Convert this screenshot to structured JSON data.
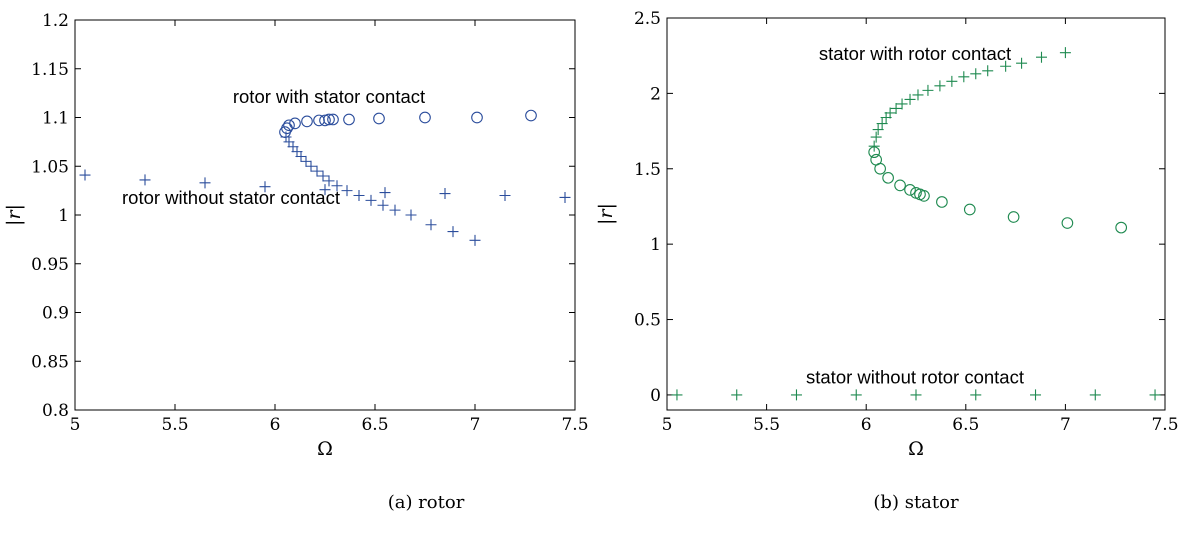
{
  "captions": {
    "a": "(a) rotor",
    "b": "(b) stator"
  },
  "chart_data": [
    {
      "type": "scatter",
      "xlabel": "Ω",
      "ylabel": "|r|",
      "xlim": [
        5,
        7.5
      ],
      "ylim": [
        0.8,
        1.2
      ],
      "xticks": [
        5,
        5.5,
        6,
        6.5,
        7,
        7.5
      ],
      "xtick_labels": [
        "5",
        "5.5",
        "6",
        "6.5",
        "7",
        "7.5"
      ],
      "yticks": [
        0.8,
        0.85,
        0.9,
        0.95,
        1,
        1.05,
        1.1,
        1.15,
        1.2
      ],
      "ytick_labels": [
        "0.8",
        "0.85",
        "0.9",
        "0.95",
        "1",
        "1.05",
        "1.1",
        "1.15",
        "1.2"
      ],
      "color": "#2b4d9c",
      "annotations": [
        {
          "text": "rotor with stator contact",
          "x": 6.27,
          "y": 1.115
        },
        {
          "text": "rotor without stator contact",
          "x": 5.78,
          "y": 1.0115
        }
      ],
      "series": [
        {
          "marker": "plus",
          "x": [
            5.05,
            5.35,
            5.65,
            5.95,
            6.25,
            6.55,
            6.85,
            7.15,
            7.45,
            6.055,
            6.07,
            6.09,
            6.11,
            6.13,
            6.155,
            6.18,
            6.21,
            6.24,
            6.27,
            6.31,
            6.36,
            6.42,
            6.48,
            6.54,
            6.6,
            6.68,
            6.78,
            6.89,
            7.0
          ],
          "y": [
            1.041,
            1.036,
            1.033,
            1.029,
            1.026,
            1.023,
            1.022,
            1.02,
            1.018,
            1.08,
            1.075,
            1.07,
            1.065,
            1.06,
            1.055,
            1.05,
            1.045,
            1.04,
            1.035,
            1.03,
            1.025,
            1.02,
            1.015,
            1.01,
            1.005,
            1.0,
            0.99,
            0.983,
            0.974
          ]
        },
        {
          "marker": "circle",
          "x": [
            6.05,
            6.06,
            6.07,
            6.1,
            6.16,
            6.22,
            6.25,
            6.27,
            6.29,
            6.37,
            6.52,
            6.75,
            7.01,
            7.28
          ],
          "y": [
            1.085,
            1.089,
            1.092,
            1.094,
            1.096,
            1.097,
            1.097,
            1.098,
            1.098,
            1.098,
            1.099,
            1.1,
            1.1,
            1.102
          ]
        }
      ]
    },
    {
      "type": "scatter",
      "xlabel": "Ω",
      "ylabel": "|r|",
      "xlim": [
        5,
        7.5
      ],
      "ylim": [
        -0.1,
        2.5
      ],
      "xticks": [
        5,
        5.5,
        6,
        6.5,
        7,
        7.5
      ],
      "xtick_labels": [
        "5",
        "5.5",
        "6",
        "6.5",
        "7",
        "7.5"
      ],
      "yticks": [
        0,
        0.5,
        1,
        1.5,
        2,
        2.5
      ],
      "ytick_labels": [
        "0",
        "0.5",
        "1",
        "1.5",
        "2",
        "2.5"
      ],
      "color": "#1f8a50",
      "annotations": [
        {
          "text": "stator with rotor contact",
          "x": 6.245,
          "y": 2.22
        },
        {
          "text": "stator without rotor contact",
          "x": 6.245,
          "y": 0.075
        }
      ],
      "series": [
        {
          "marker": "plus",
          "x": [
            5.05,
            5.35,
            5.65,
            5.95,
            6.25,
            6.55,
            6.85,
            7.15,
            7.45,
            6.04,
            6.05,
            6.06,
            6.08,
            6.1,
            6.12,
            6.15,
            6.18,
            6.22,
            6.26,
            6.31,
            6.37,
            6.43,
            6.49,
            6.55,
            6.61,
            6.7,
            6.78,
            6.88,
            7.0
          ],
          "y": [
            0,
            0,
            0,
            0,
            0,
            0,
            0,
            0,
            0,
            1.65,
            1.71,
            1.76,
            1.8,
            1.84,
            1.87,
            1.9,
            1.93,
            1.96,
            1.99,
            2.02,
            2.05,
            2.08,
            2.11,
            2.13,
            2.15,
            2.18,
            2.2,
            2.24,
            2.27
          ]
        },
        {
          "marker": "circle",
          "x": [
            6.04,
            6.05,
            6.07,
            6.11,
            6.17,
            6.22,
            6.25,
            6.27,
            6.29,
            6.38,
            6.52,
            6.74,
            7.01,
            7.28
          ],
          "y": [
            1.61,
            1.56,
            1.5,
            1.44,
            1.39,
            1.36,
            1.34,
            1.33,
            1.32,
            1.28,
            1.23,
            1.18,
            1.14,
            1.11
          ]
        }
      ]
    }
  ]
}
